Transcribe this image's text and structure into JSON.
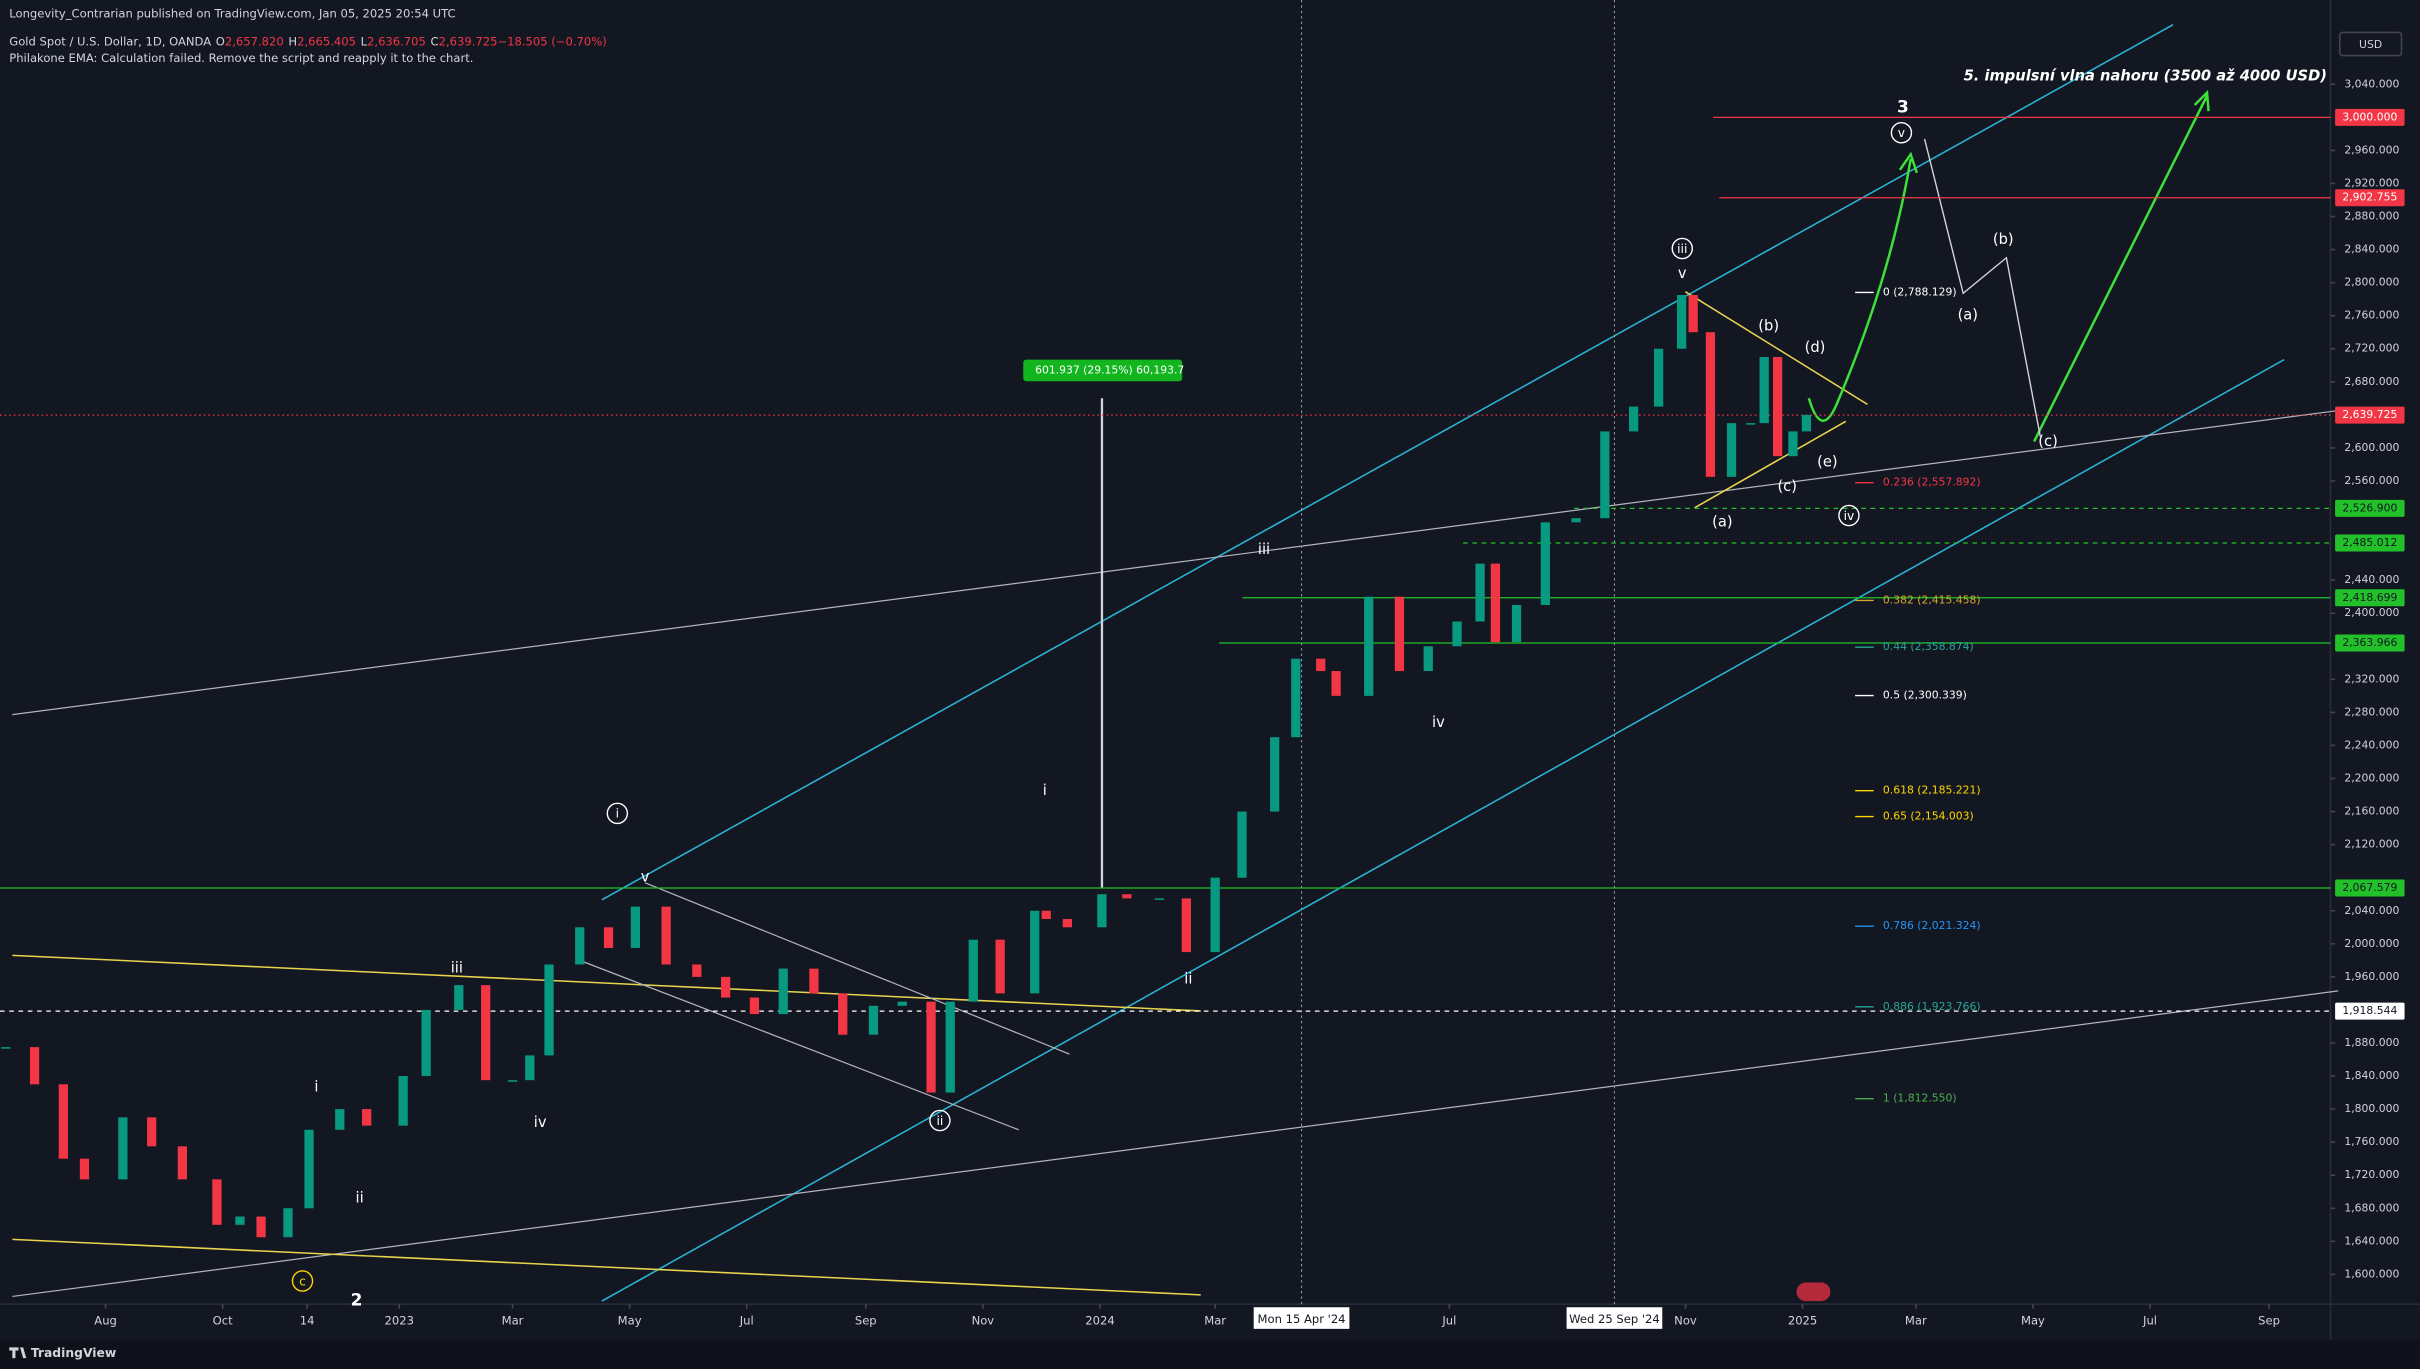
{
  "header": {
    "publisher": "Longevity_Contrarian published on TradingView.com, Jan 05, 2025 20:54 UTC",
    "symbol": "Gold Spot / U.S. Dollar, 1D, OANDA",
    "ohlc": [
      "O",
      "2,657.820",
      "H",
      "2,665.405",
      "L",
      "2,636.705",
      "C",
      "2,639.725",
      "−18.505 (−0.70%)"
    ],
    "indicator": "Philakone EMA: Calculation failed. Remove the script and reapply it to the chart."
  },
  "chart_data": {
    "type": "candlestick",
    "currency": "USD",
    "up_color": "#089981",
    "down_color": "#f23645",
    "x": [
      "2022-06-10",
      "2022-06-25",
      "2022-07-10",
      "2022-07-21",
      "2022-08-10",
      "2022-08-25",
      "2022-09-10",
      "2022-09-28",
      "2022-10-10",
      "2022-10-21",
      "2022-11-04",
      "2022-11-15",
      "2022-12-01",
      "2022-12-15",
      "2023-01-03",
      "2023-01-15",
      "2023-02-01",
      "2023-02-15",
      "2023-03-01",
      "2023-03-10",
      "2023-03-20",
      "2023-04-05",
      "2023-04-20",
      "2023-05-04",
      "2023-05-20",
      "2023-06-05",
      "2023-06-20",
      "2023-07-05",
      "2023-07-20",
      "2023-08-05",
      "2023-08-20",
      "2023-09-05",
      "2023-09-20",
      "2023-10-05",
      "2023-10-15",
      "2023-10-27",
      "2023-11-10",
      "2023-11-28",
      "2023-12-04",
      "2023-12-15",
      "2024-01-02",
      "2024-01-15",
      "2024-02-01",
      "2024-02-15",
      "2024-03-01",
      "2024-03-15",
      "2024-04-01",
      "2024-04-12",
      "2024-04-25",
      "2024-05-03",
      "2024-05-20",
      "2024-06-05",
      "2024-06-20",
      "2024-07-05",
      "2024-07-17",
      "2024-07-25",
      "2024-08-05",
      "2024-08-20",
      "2024-09-05",
      "2024-09-20",
      "2024-10-05",
      "2024-10-18",
      "2024-10-30",
      "2024-11-05",
      "2024-11-14",
      "2024-11-25",
      "2024-12-05",
      "2024-12-12",
      "2024-12-19",
      "2024-12-27",
      "2025-01-03"
    ],
    "values": [
      1875,
      1830,
      1740,
      1715,
      1790,
      1755,
      1715,
      1660,
      1670,
      1645,
      1680,
      1775,
      1800,
      1780,
      1840,
      1920,
      1950,
      1835,
      1835,
      1865,
      1975,
      2020,
      1995,
      2045,
      1975,
      1960,
      1935,
      1915,
      1970,
      1940,
      1890,
      1925,
      1930,
      1820,
      1930,
      2005,
      1940,
      2040,
      2030,
      2020,
      2060,
      2055,
      2055,
      1990,
      2080,
      2160,
      2250,
      2345,
      2330,
      2300,
      2420,
      2330,
      2360,
      2390,
      2460,
      2365,
      2410,
      2510,
      2515,
      2620,
      2650,
      2720,
      2785,
      2740,
      2565,
      2630,
      2630,
      2710,
      2590,
      2620,
      2640
    ],
    "xlim": [
      "2022-06-07",
      "2025-10-03"
    ],
    "ylim": [
      1564,
      3127
    ],
    "yticks": [
      {
        "value": 1600,
        "label": "1,600.000"
      },
      {
        "value": 1640,
        "label": "1,640.000"
      },
      {
        "value": 1680,
        "label": "1,680.000"
      },
      {
        "value": 1720,
        "label": "1,720.000"
      },
      {
        "value": 1760,
        "label": "1,760.000"
      },
      {
        "value": 1800,
        "label": "1,800.000"
      },
      {
        "value": 1840,
        "label": "1,840.000"
      },
      {
        "value": 1880,
        "label": "1,880.000"
      },
      {
        "value": 1960,
        "label": "1,960.000"
      },
      {
        "value": 2000,
        "label": "2,000.000"
      },
      {
        "value": 2040,
        "label": "2,040.000"
      },
      {
        "value": 2120,
        "label": "2,120.000"
      },
      {
        "value": 2160,
        "label": "2,160.000"
      },
      {
        "value": 2200,
        "label": "2,200.000"
      },
      {
        "value": 2240,
        "label": "2,240.000"
      },
      {
        "value": 2280,
        "label": "2,280.000"
      },
      {
        "value": 2320,
        "label": "2,320.000"
      },
      {
        "value": 2400,
        "label": "2,400.000"
      },
      {
        "value": 2440,
        "label": "2,440.000"
      },
      {
        "value": 2560,
        "label": "2,560.000"
      },
      {
        "value": 2600,
        "label": "2,600.000"
      },
      {
        "value": 2680,
        "label": "2,680.000"
      },
      {
        "value": 2720,
        "label": "2,720.000"
      },
      {
        "value": 2760,
        "label": "2,760.000"
      },
      {
        "value": 2800,
        "label": "2,800.000"
      },
      {
        "value": 2840,
        "label": "2,840.000"
      },
      {
        "value": 2880,
        "label": "2,880.000"
      },
      {
        "value": 2920,
        "label": "2,920.000"
      },
      {
        "value": 2960,
        "label": "2,960.000"
      },
      {
        "value": 3040,
        "label": "3,040.000"
      }
    ],
    "xticks": [
      {
        "value": "2022-08-01",
        "label": "Aug"
      },
      {
        "value": "2022-10-01",
        "label": "Oct"
      },
      {
        "value": "2022-11-14",
        "label": "14"
      },
      {
        "value": "2023-01-01",
        "label": "2023"
      },
      {
        "value": "2023-03-01",
        "label": "Mar"
      },
      {
        "value": "2023-05-01",
        "label": "May"
      },
      {
        "value": "2023-07-01",
        "label": "Jul"
      },
      {
        "value": "2023-09-01",
        "label": "Sep"
      },
      {
        "value": "2023-11-01",
        "label": "Nov"
      },
      {
        "value": "2024-01-01",
        "label": "2024"
      },
      {
        "value": "2024-03-01",
        "label": "Mar"
      },
      {
        "value": "2024-07-01",
        "label": "Jul"
      },
      {
        "value": "2024-11-01",
        "label": "Nov"
      },
      {
        "value": "2025-01-01",
        "label": "2025"
      },
      {
        "value": "2025-03-01",
        "label": "Mar"
      },
      {
        "value": "2025-05-01",
        "label": "May"
      },
      {
        "value": "2025-07-01",
        "label": "Jul"
      },
      {
        "value": "2025-09-01",
        "label": "Sep"
      }
    ],
    "crosshair_dates": [
      {
        "value": "2024-04-15",
        "label": "Mon 15 Apr '24"
      },
      {
        "value": "2024-09-25",
        "label": "Wed 25 Sep '24"
      }
    ],
    "price_levels": [
      {
        "value": 3000,
        "label": "3,000.000",
        "color": "#f23645"
      },
      {
        "value": 2902.755,
        "label": "2,902.755",
        "color": "#f23645"
      },
      {
        "value": 2639.725,
        "label": "2,639.725",
        "color": "#f23645"
      },
      {
        "value": 2526.9,
        "label": "2,526.900",
        "color": "#22c12a"
      },
      {
        "value": 2485.012,
        "label": "2,485.012",
        "color": "#22c12a"
      },
      {
        "value": 2418.699,
        "label": "2,418.699",
        "color": "#22c12a"
      },
      {
        "value": 2363.966,
        "label": "2,363.966",
        "color": "#22c12a"
      },
      {
        "value": 2067.579,
        "label": "2,067.579",
        "color": "#22c12a"
      },
      {
        "value": 1918.544,
        "label": "1,918.544",
        "color": "#ffffff"
      }
    ],
    "fib_levels": [
      {
        "value": 2788.129,
        "label": "0 (2,788.129)",
        "color": "#ffffff"
      },
      {
        "value": 2557.892,
        "label": "0.236 (2,557.892)",
        "color": "#f23645"
      },
      {
        "value": 2415.458,
        "label": "0.382 (2,415.458)",
        "color": "#d4a72c"
      },
      {
        "value": 2358.874,
        "label": "0.44 (2,358.874)",
        "color": "#26a69a"
      },
      {
        "value": 2300.339,
        "label": "0.5 (2,300.339)",
        "color": "#ffffff"
      },
      {
        "value": 2185.221,
        "label": "0.618 (2,185.221)",
        "color": "#ffd600"
      },
      {
        "value": 2154.003,
        "label": "0.65 (2,154.003)",
        "color": "#ffd600"
      },
      {
        "value": 2021.324,
        "label": "0.786 (2,021.324)",
        "color": "#2196f3"
      },
      {
        "value": 1923.766,
        "label": "0.886 (1,923.766)",
        "color": "#26a69a"
      },
      {
        "value": 1812.55,
        "label": "1 (1,812.550)",
        "color": "#4caf50"
      }
    ],
    "measure": "601.937 (29.15%) 60,193.7",
    "annotations": [
      "c",
      "2",
      "i",
      "ii",
      "iii",
      "iv",
      "v",
      "i",
      "ii",
      "i",
      "ii",
      "iii",
      "iv",
      "v",
      "iii",
      "(a)",
      "(b)",
      "(c)",
      "(d)",
      "(e)",
      "iv",
      "3",
      "v",
      "(a)",
      "(b)",
      "(c)",
      "5. impulsní vlna nahoru (3500 až 4000 USD)"
    ]
  },
  "footer": {
    "logo": "TradingView"
  }
}
